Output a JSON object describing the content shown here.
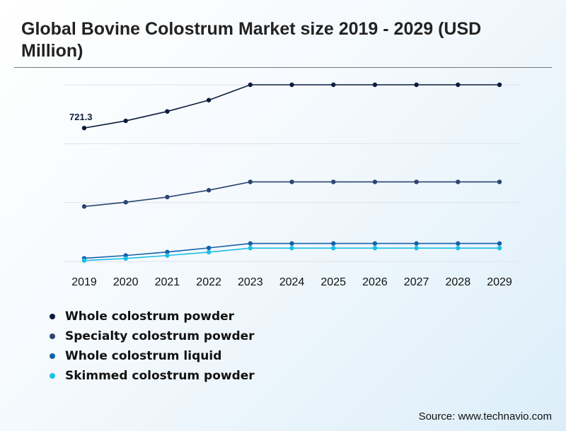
{
  "title": "Global Bovine Colostrum Market size 2019 - 2029 (USD Million)",
  "source": "Source: www.technavio.com",
  "chart_data": {
    "type": "line",
    "title": "Global Bovine Colostrum Market size 2019 - 2029 (USD Million)",
    "xlabel": "",
    "ylabel": "",
    "categories": [
      "2019",
      "2020",
      "2021",
      "2022",
      "2023",
      "2024",
      "2025",
      "2026",
      "2027",
      "2028",
      "2029"
    ],
    "ylim": [
      0,
      1200
    ],
    "grid": true,
    "legend": "bottom-left",
    "series": [
      {
        "name": "Whole colostrum powder",
        "color": "#0b1c3d",
        "values": [
          721.3,
          760,
          811,
          872,
          955,
          955,
          955,
          955,
          955,
          955,
          955
        ]
      },
      {
        "name": "Specialty colostrum powder",
        "color": "#2b4470",
        "values": [
          297,
          320,
          348,
          385,
          430,
          430,
          430,
          430,
          430,
          430,
          430
        ]
      },
      {
        "name": "Whole colostrum liquid",
        "color": "#1560a8",
        "values": [
          17,
          32,
          51,
          73,
          97,
          97,
          97,
          97,
          97,
          97,
          97
        ]
      },
      {
        "name": "Skimmed colostrum powder",
        "color": "#19c0e6",
        "values": [
          5,
          16,
          32,
          50,
          72,
          72,
          72,
          72,
          72,
          72,
          72
        ]
      }
    ],
    "annotations": [
      {
        "series": 0,
        "index": 0,
        "text": "721.3"
      }
    ]
  }
}
